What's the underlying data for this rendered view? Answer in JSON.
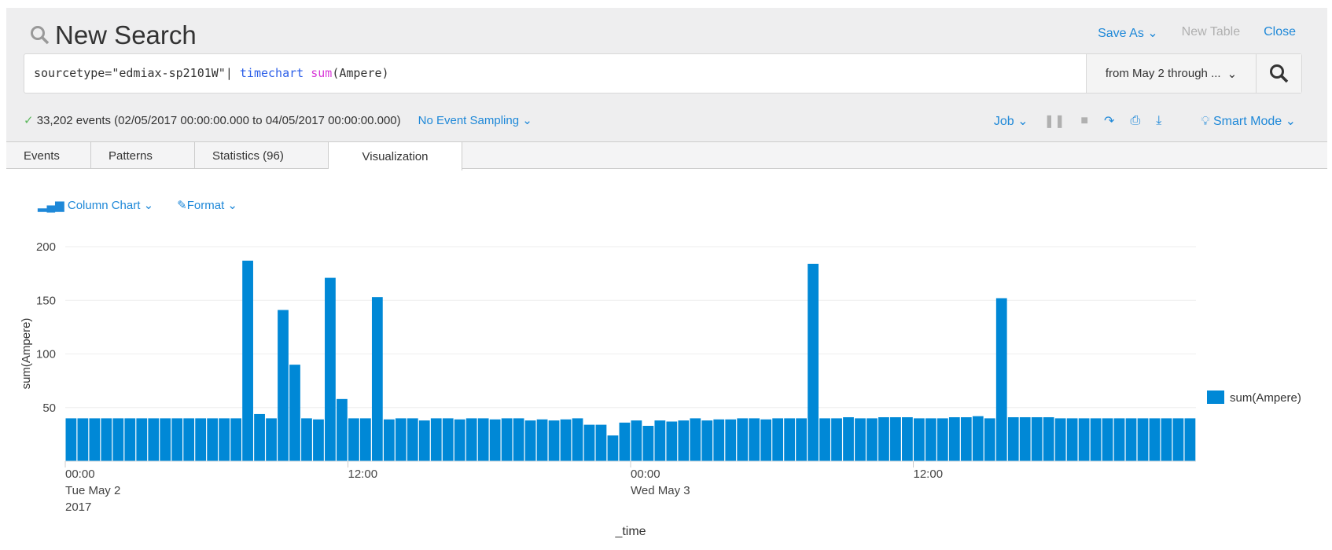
{
  "header": {
    "title": "New Search",
    "save_as": "Save As",
    "new_table": "New Table",
    "close": "Close"
  },
  "search": {
    "q_part1": "sourcetype=\"edmiax-sp2101W\"| ",
    "q_cmd": "timechart",
    "q_sp": " ",
    "q_fn": "sum",
    "q_args": "(Ampere)",
    "time_range": "from May 2 through ..."
  },
  "status": {
    "events": "33,202 events (02/05/2017 00:00:00.000 to 04/05/2017 00:00:00.000)",
    "sampling": "No Event Sampling",
    "job": "Job",
    "mode": "Smart Mode"
  },
  "tabs": [
    "Events",
    "Patterns",
    "Statistics (96)",
    "Visualization"
  ],
  "viz": {
    "chart_type": "Column Chart",
    "format": "Format"
  },
  "colors": {
    "accent": "#1e88d8",
    "bar": "#0088d6"
  },
  "chart_data": {
    "type": "bar",
    "title": "",
    "xlabel": "_time",
    "ylabel": "sum(Ampere)",
    "ylim": [
      0,
      200
    ],
    "yticks": [
      "50",
      "100",
      "150",
      "200"
    ],
    "xticks": [
      {
        "index": 0,
        "lines": [
          "00:00",
          "Tue May 2",
          "2017"
        ]
      },
      {
        "index": 24,
        "lines": [
          "12:00"
        ]
      },
      {
        "index": 48,
        "lines": [
          "00:00",
          "Wed May 3"
        ]
      },
      {
        "index": 72,
        "lines": [
          "12:00"
        ]
      }
    ],
    "legend": {
      "label": "sum(Ampere)",
      "position": "right"
    },
    "interval": "30m",
    "values": [
      40,
      40,
      40,
      40,
      40,
      40,
      40,
      40,
      40,
      40,
      40,
      40,
      40,
      40,
      40,
      187,
      44,
      40,
      141,
      90,
      40,
      39,
      171,
      58,
      40,
      40,
      153,
      39,
      40,
      40,
      38,
      40,
      40,
      39,
      40,
      40,
      39,
      40,
      40,
      38,
      39,
      38,
      39,
      40,
      34,
      34,
      24,
      36,
      38,
      33,
      38,
      37,
      38,
      40,
      38,
      39,
      39,
      40,
      40,
      39,
      40,
      40,
      40,
      184,
      40,
      40,
      41,
      40,
      40,
      41,
      41,
      41,
      40,
      40,
      40,
      41,
      41,
      42,
      40,
      152,
      41,
      41,
      41,
      41,
      40,
      40,
      40,
      40,
      40,
      40,
      40,
      40,
      40,
      40,
      40,
      40
    ]
  }
}
